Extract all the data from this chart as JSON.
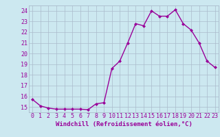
{
  "x": [
    0,
    1,
    2,
    3,
    4,
    5,
    6,
    7,
    8,
    9,
    10,
    11,
    12,
    13,
    14,
    15,
    16,
    17,
    18,
    19,
    20,
    21,
    22,
    23
  ],
  "y": [
    15.7,
    15.1,
    14.9,
    14.8,
    14.8,
    14.8,
    14.8,
    14.75,
    15.3,
    15.4,
    18.6,
    19.3,
    21.0,
    22.8,
    22.6,
    24.0,
    23.5,
    23.5,
    24.1,
    22.8,
    22.2,
    21.0,
    19.3,
    18.7
  ],
  "line_color": "#990099",
  "marker": "D",
  "marker_size": 2.0,
  "bg_color": "#cce8f0",
  "grid_color": "#aabbcc",
  "xlabel": "Windchill (Refroidissement éolien,°C)",
  "ylim": [
    14.5,
    24.5
  ],
  "yticks": [
    15,
    16,
    17,
    18,
    19,
    20,
    21,
    22,
    23,
    24
  ],
  "xlim": [
    -0.5,
    23.5
  ],
  "xticks": [
    0,
    1,
    2,
    3,
    4,
    5,
    6,
    7,
    8,
    9,
    10,
    11,
    12,
    13,
    14,
    15,
    16,
    17,
    18,
    19,
    20,
    21,
    22,
    23
  ],
  "xlabel_fontsize": 6.5,
  "tick_fontsize": 6.0,
  "line_width": 1.0
}
